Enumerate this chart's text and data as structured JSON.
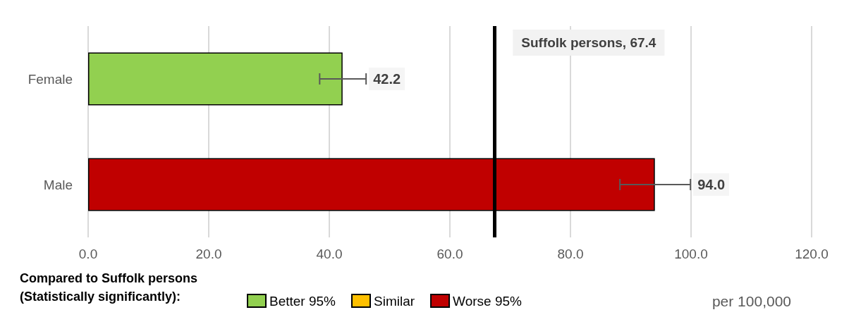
{
  "chart_data": {
    "type": "bar",
    "orientation": "horizontal",
    "stacked": true,
    "categories": [
      "Female",
      "Male"
    ],
    "series": [
      {
        "name": "Better 95%",
        "color": "#92d050",
        "values": [
          42.2,
          null
        ],
        "errors": [
          [
            38.4,
            46.1
          ],
          null
        ],
        "value_labels": [
          "42.2",
          null
        ]
      },
      {
        "name": "Similar",
        "color": "#ffc000",
        "values": [
          null,
          null
        ]
      },
      {
        "name": "Worse 95%",
        "color": "#c00000",
        "values": [
          null,
          94.0
        ],
        "errors": [
          null,
          [
            88.2,
            99.9
          ]
        ],
        "value_labels": [
          null,
          "94.0"
        ]
      }
    ],
    "xlim": [
      0,
      120
    ],
    "xticks": [
      {
        "value": 0,
        "label": "0.0"
      },
      {
        "value": 20,
        "label": "20.0"
      },
      {
        "value": 40,
        "label": "40.0"
      },
      {
        "value": 60,
        "label": "60.0"
      },
      {
        "value": 80,
        "label": "80.0"
      },
      {
        "value": 100,
        "label": "100.0"
      },
      {
        "value": 120,
        "label": "120.0"
      }
    ],
    "xlabel": "per 100,000",
    "legend_title": "Compared to Suffolk persons\n(Statistically significantly):",
    "legend": "bottom",
    "grid": "x",
    "ref_lines": [
      {
        "axis": "x",
        "value": 67.4,
        "label": "Suffolk persons, 67.4",
        "color": "#000000"
      }
    ]
  }
}
